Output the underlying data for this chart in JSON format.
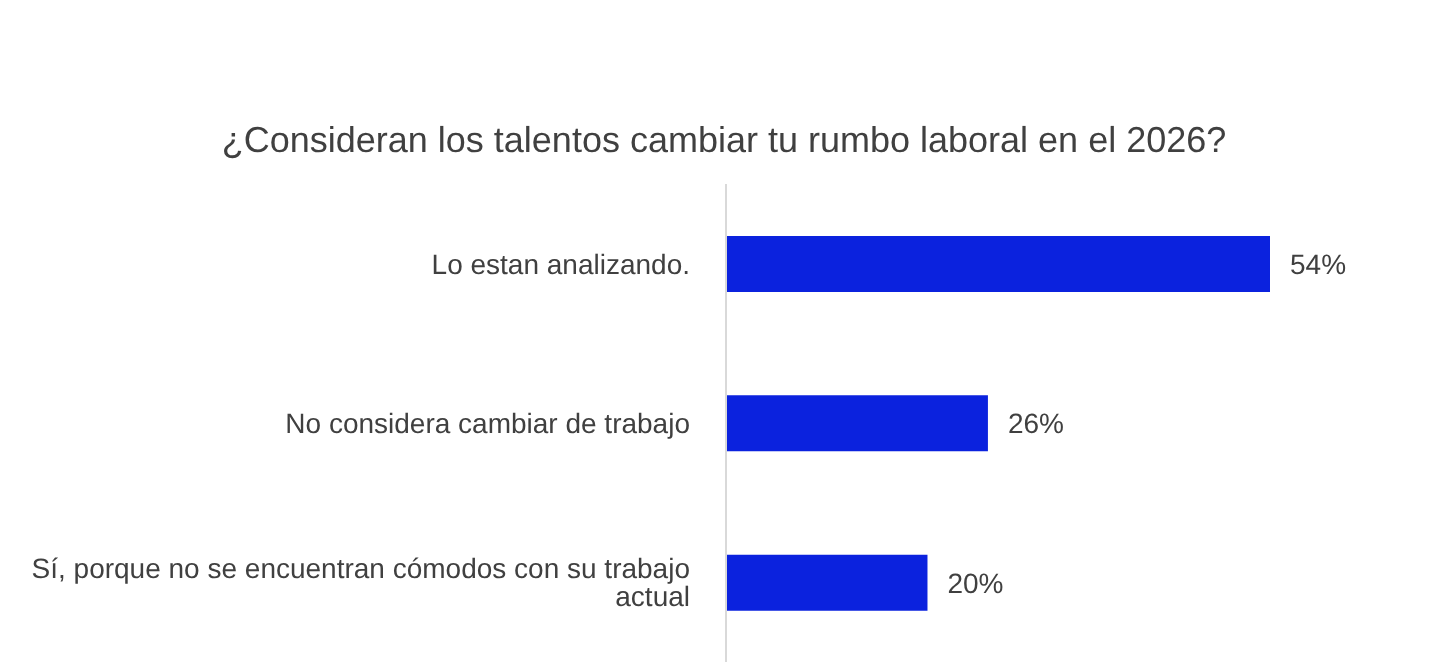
{
  "chart_data": {
    "type": "bar",
    "orientation": "horizontal",
    "title": "¿Consideran los talentos cambiar tu rumbo laboral en el 2026?",
    "categories": [
      "Lo estan analizando.",
      "No considera cambiar de trabajo",
      "Sí, porque no se encuentran cómodos con su trabajo actual"
    ],
    "values": [
      54,
      26,
      20
    ],
    "color": "#0b22de",
    "value_labels": [
      "54%",
      "26%",
      "20%"
    ]
  }
}
